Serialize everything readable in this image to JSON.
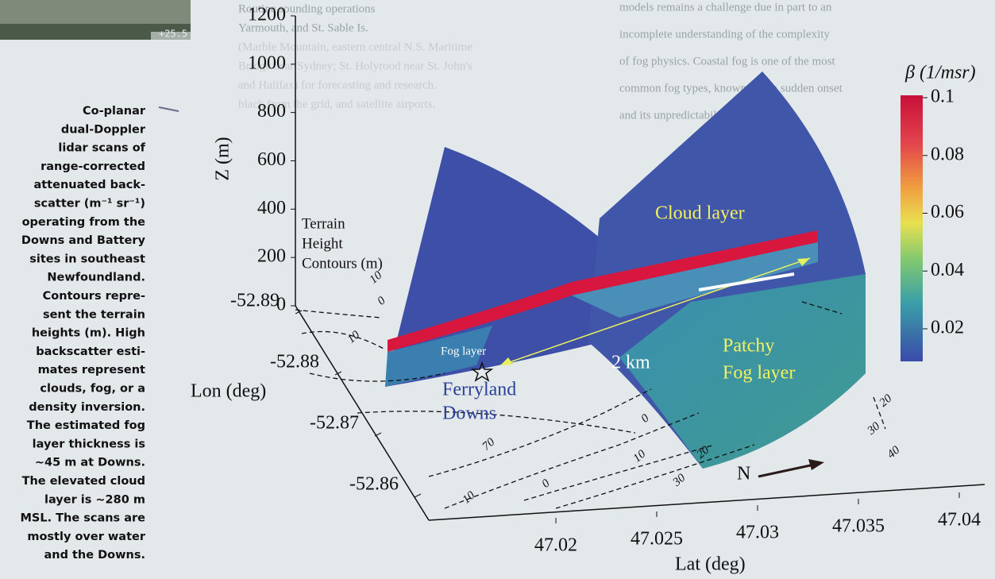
{
  "inset": {
    "label": "+25.5"
  },
  "caption": [
    "Co-planar",
    "dual-Doppler",
    "lidar scans of",
    "range-corrected",
    "attenuated back-",
    "scatter (m⁻¹ sr⁻¹)",
    "operating from the",
    "Downs and Battery",
    "sites in southeast",
    "Newfoundland.",
    "Contours repre-",
    "sent the terrain",
    "heights (m). High",
    "backscatter esti-",
    "mates represent",
    "clouds, fog, or a",
    "density inversion.",
    "The estimated fog",
    "layer thickness is",
    "~45 m at Downs.",
    "The elevated cloud",
    "layer is ~280 m",
    "MSL. The scans are",
    "mostly over water",
    "and the Downs."
  ],
  "figure": {
    "z_label": "Z (m)",
    "lon_label": "Lon (deg)",
    "lat_label": "Lat (deg)",
    "z_ticks": [
      0,
      200,
      400,
      600,
      800,
      1000,
      1200
    ],
    "lon_ticks": [
      -52.89,
      -52.88,
      -52.87,
      -52.86
    ],
    "lat_ticks": [
      47.02,
      47.025,
      47.03,
      47.035,
      47.04
    ],
    "colorbar": {
      "label": "β (1/msr)",
      "ticks": [
        0.02,
        0.04,
        0.06,
        0.08,
        0.1
      ]
    },
    "terrain_label": [
      "Terrain",
      "Height",
      "Contours (m)"
    ],
    "annotations": {
      "cloud": "Cloud layer",
      "fog": "Fog layer",
      "patchy": [
        "Patchy",
        "Fog layer"
      ],
      "site": [
        "Ferryland",
        "Downs"
      ],
      "distance": "2 km",
      "north": "N"
    },
    "contour_labels": [
      10,
      0,
      10,
      70,
      0,
      10,
      0,
      10,
      20,
      30,
      40,
      20,
      30
    ]
  },
  "background_text": [
    "Routine sounding operations",
    "Yarmouth, and St. Sable Is.",
    "(Marble Mountain, eastern central N.S. Maritime",
    "Bridge near Sydney; St. Holyrood near St. John's",
    "and Halifax) for forecasting and research.",
    "black from the grid, and satellite airports.",
    "models remains a challenge due in part to an",
    "incomplete understanding of the complexity",
    "of fog physics. Coastal fog is one of the most",
    "common fog types, known for its sudden onset",
    "and its unpredictability."
  ]
}
